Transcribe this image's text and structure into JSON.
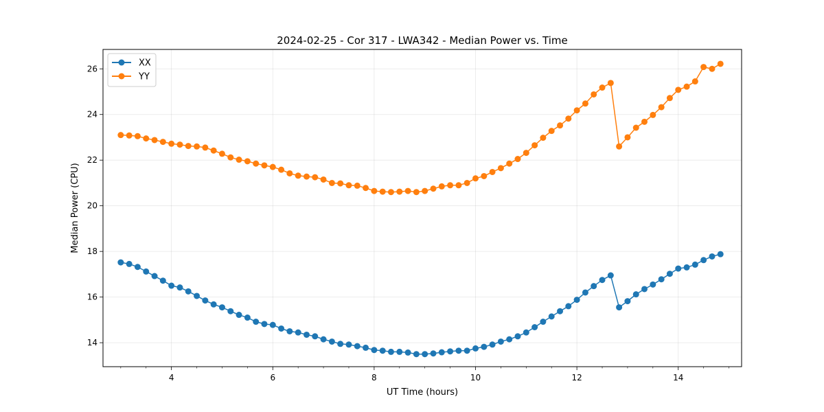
{
  "chart_data": {
    "type": "line",
    "title": "2024-02-25 - Cor 317 - LWA342 - Median Power vs. Time",
    "xlabel": "UT Time (hours)",
    "ylabel": "Median Power (CPU)",
    "xlim": [
      2.65,
      15.25
    ],
    "ylim": [
      12.95,
      26.85
    ],
    "xticks": [
      4,
      6,
      8,
      10,
      12,
      14
    ],
    "yticks": [
      14,
      16,
      18,
      20,
      22,
      24,
      26
    ],
    "xtick_labels": [
      "4",
      "6",
      "8",
      "10",
      "12",
      "14"
    ],
    "ytick_labels": [
      "14",
      "16",
      "18",
      "20",
      "22",
      "24",
      "26"
    ],
    "grid": true,
    "legend_position": "top-left",
    "x": [
      3.0,
      3.167,
      3.333,
      3.5,
      3.667,
      3.833,
      4.0,
      4.167,
      4.333,
      4.5,
      4.667,
      4.833,
      5.0,
      5.167,
      5.333,
      5.5,
      5.667,
      5.833,
      6.0,
      6.167,
      6.333,
      6.5,
      6.667,
      6.833,
      7.0,
      7.167,
      7.333,
      7.5,
      7.667,
      7.833,
      8.0,
      8.167,
      8.333,
      8.5,
      8.667,
      8.833,
      9.0,
      9.167,
      9.333,
      9.5,
      9.667,
      9.833,
      10.0,
      10.167,
      10.333,
      10.5,
      10.667,
      10.833,
      11.0,
      11.167,
      11.333,
      11.5,
      11.667,
      11.833,
      12.0,
      12.167,
      12.333,
      12.5,
      12.667,
      12.833,
      13.0,
      13.167,
      13.333,
      13.5,
      13.667,
      13.833,
      14.0,
      14.167,
      14.333,
      14.5,
      14.667,
      14.833
    ],
    "series": [
      {
        "name": "XX",
        "color": "#1f77b4",
        "values": [
          17.52,
          17.45,
          17.32,
          17.12,
          16.92,
          16.72,
          16.5,
          16.42,
          16.25,
          16.05,
          15.85,
          15.68,
          15.55,
          15.38,
          15.22,
          15.1,
          14.92,
          14.82,
          14.78,
          14.62,
          14.5,
          14.45,
          14.35,
          14.28,
          14.15,
          14.05,
          13.95,
          13.92,
          13.85,
          13.78,
          13.68,
          13.65,
          13.6,
          13.6,
          13.57,
          13.5,
          13.5,
          13.53,
          13.58,
          13.62,
          13.65,
          13.65,
          13.75,
          13.82,
          13.92,
          14.05,
          14.15,
          14.28,
          14.45,
          14.68,
          14.92,
          15.15,
          15.38,
          15.6,
          15.88,
          16.2,
          16.48,
          16.75,
          16.95,
          15.55,
          15.82,
          16.12,
          16.35,
          16.55,
          16.78,
          17.02,
          17.25,
          17.3,
          17.42,
          17.62,
          17.78,
          17.88
        ]
      },
      {
        "name": "YY",
        "color": "#ff7f0e",
        "values": [
          23.1,
          23.08,
          23.05,
          22.95,
          22.88,
          22.8,
          22.72,
          22.68,
          22.62,
          22.6,
          22.55,
          22.42,
          22.28,
          22.12,
          22.02,
          21.95,
          21.85,
          21.77,
          21.7,
          21.58,
          21.42,
          21.32,
          21.28,
          21.25,
          21.15,
          21.0,
          20.98,
          20.9,
          20.88,
          20.78,
          20.65,
          20.62,
          20.6,
          20.62,
          20.65,
          20.6,
          20.65,
          20.75,
          20.85,
          20.9,
          20.9,
          21.0,
          21.2,
          21.3,
          21.48,
          21.65,
          21.85,
          22.05,
          22.32,
          22.65,
          22.98,
          23.28,
          23.52,
          23.82,
          24.18,
          24.48,
          24.88,
          25.18,
          25.38,
          22.6,
          23.0,
          23.42,
          23.68,
          23.98,
          24.32,
          24.72,
          25.08,
          25.22,
          25.45,
          26.08,
          26.0,
          26.22
        ]
      }
    ]
  }
}
